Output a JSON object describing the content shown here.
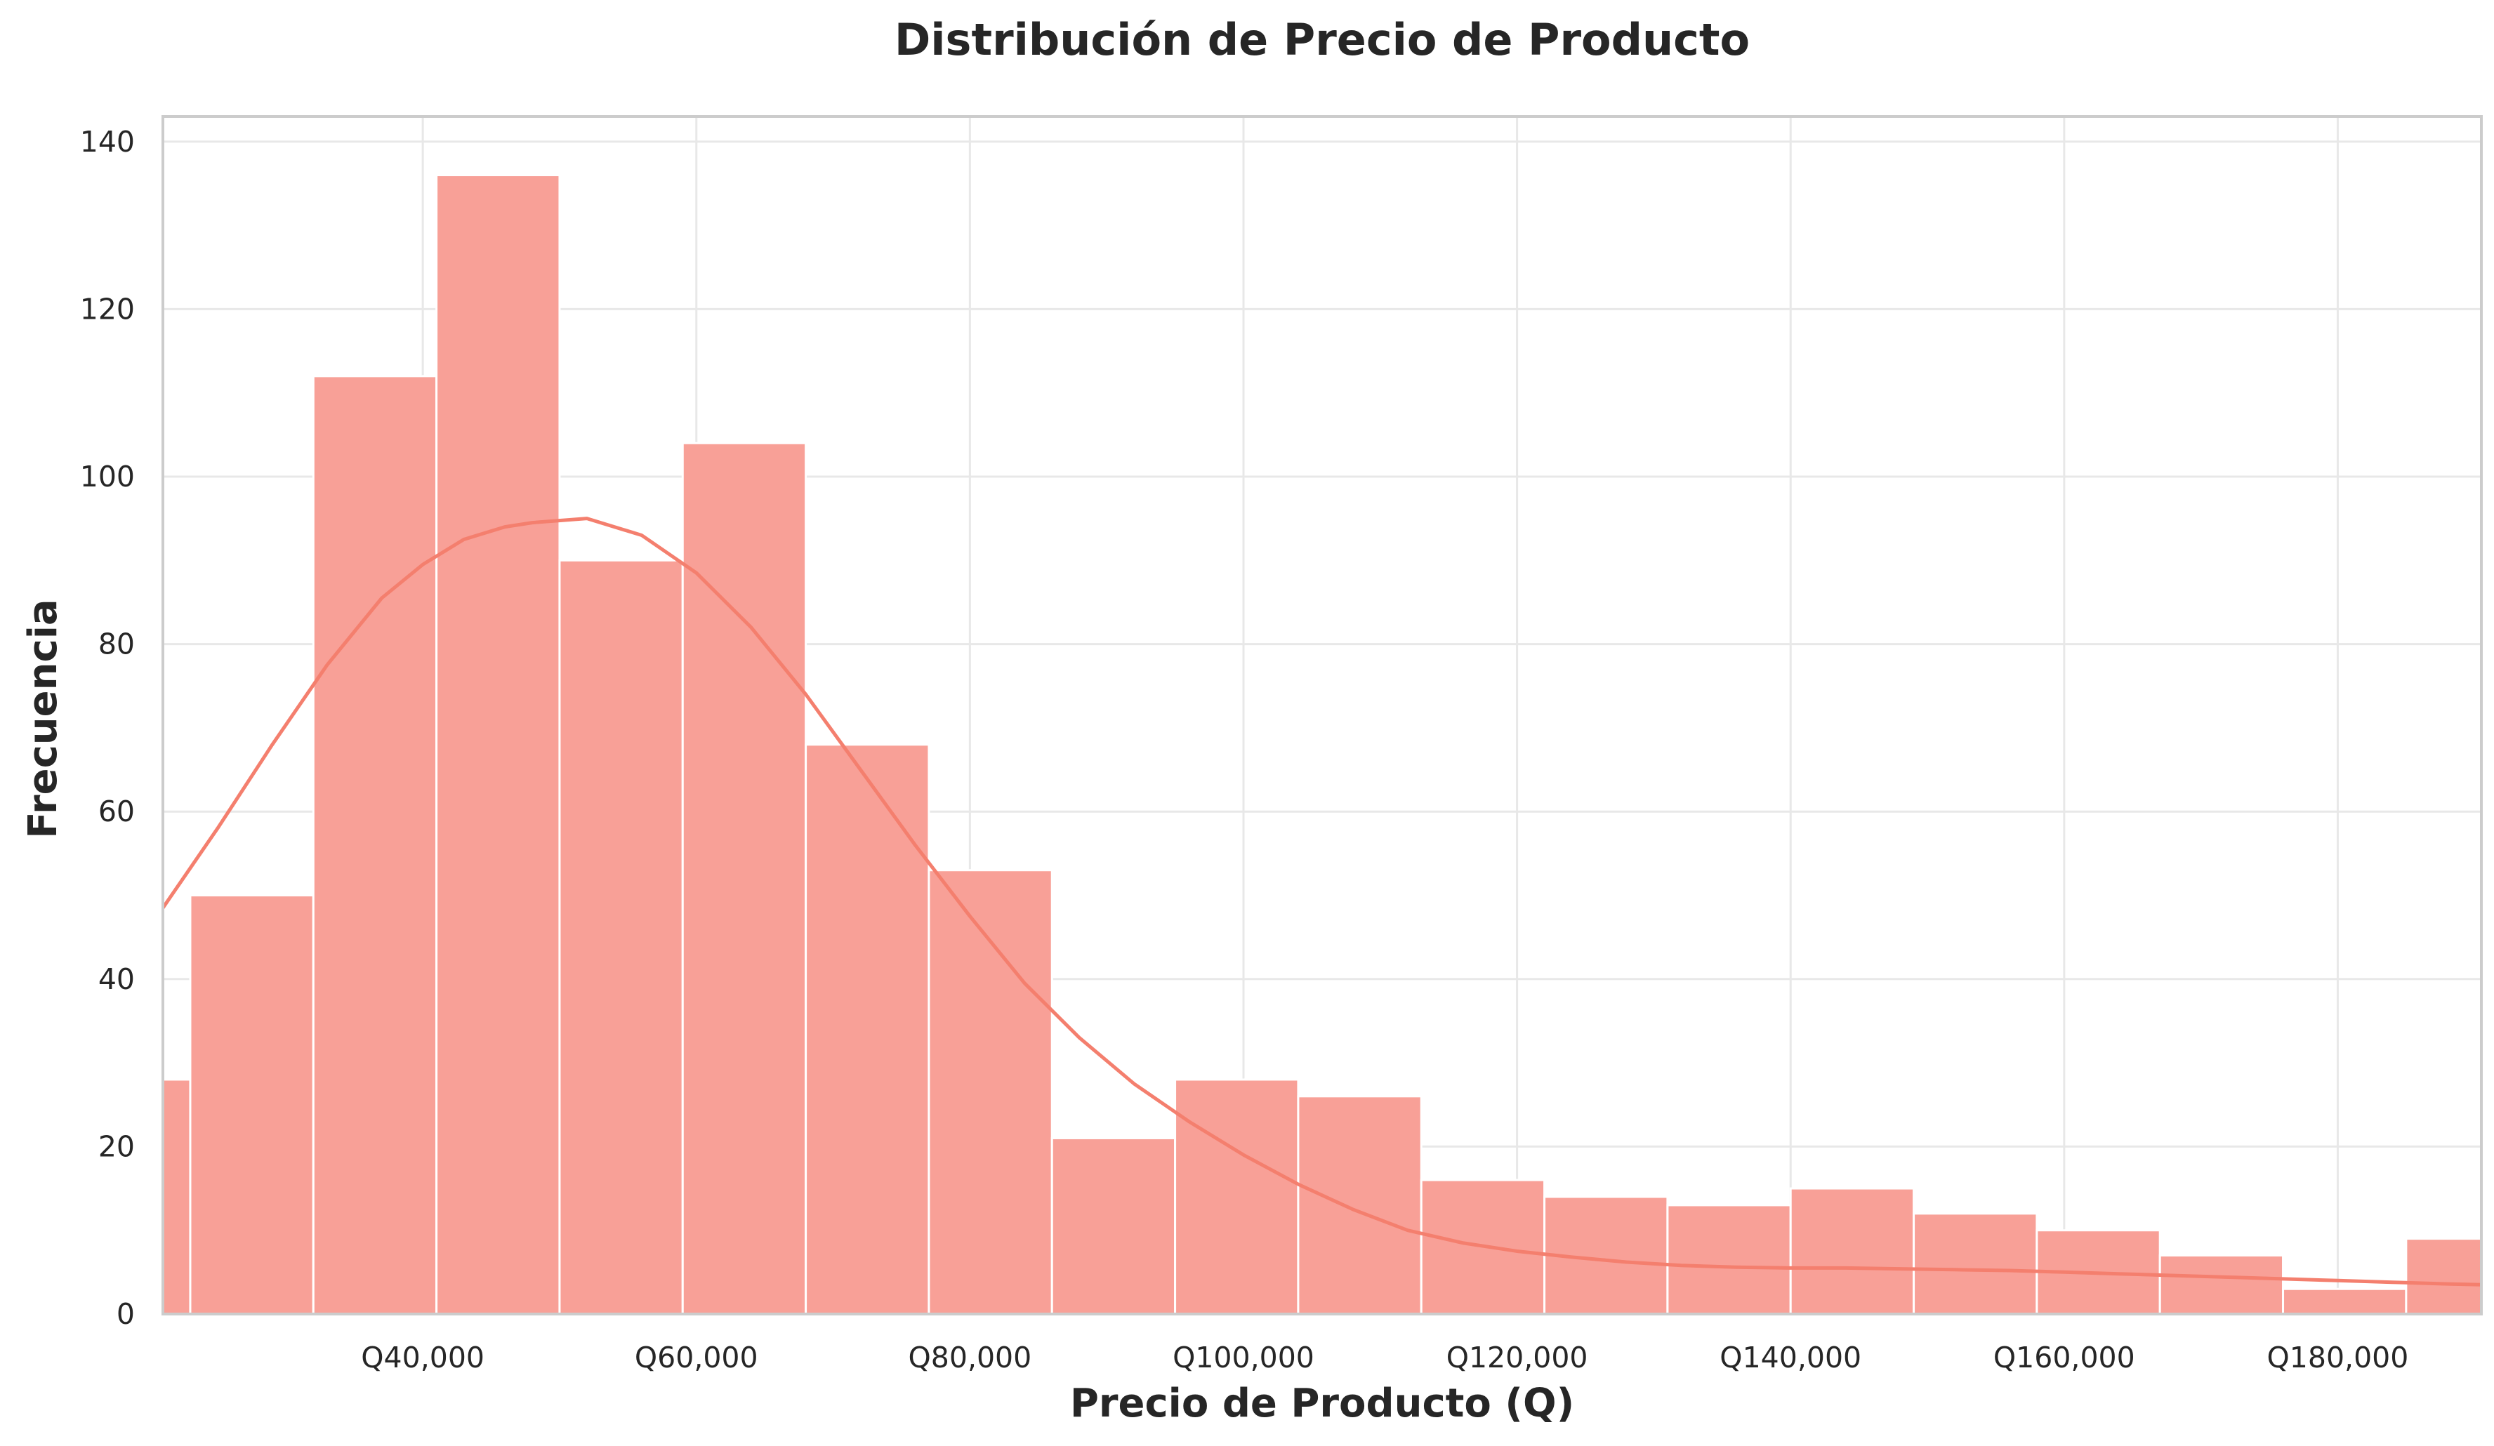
{
  "chart_data": {
    "type": "bar",
    "title": "Distribución de Precio de Producto",
    "xlabel": "Precio de Producto (Q)",
    "ylabel": "Frecuencia",
    "xlim": [
      21000,
      190500
    ],
    "ylim": [
      0,
      143
    ],
    "x_ticks": [
      40000,
      60000,
      80000,
      100000,
      120000,
      140000,
      160000,
      180000
    ],
    "x_tick_labels": [
      "Q40,000",
      "Q60,000",
      "Q80,000",
      "Q100,000",
      "Q120,000",
      "Q140,000",
      "Q160,000",
      "Q180,000"
    ],
    "y_ticks": [
      0,
      20,
      40,
      60,
      80,
      100,
      120,
      140
    ],
    "y_tick_labels": [
      "0",
      "20",
      "40",
      "60",
      "80",
      "100",
      "120",
      "140"
    ],
    "bins": [
      {
        "x0": 14000,
        "x1": 23000,
        "count": 28
      },
      {
        "x0": 23000,
        "x1": 32000,
        "count": 50
      },
      {
        "x0": 32000,
        "x1": 41000,
        "count": 112
      },
      {
        "x0": 41000,
        "x1": 50000,
        "count": 136
      },
      {
        "x0": 50000,
        "x1": 59000,
        "count": 90
      },
      {
        "x0": 59000,
        "x1": 68000,
        "count": 104
      },
      {
        "x0": 68000,
        "x1": 77000,
        "count": 68
      },
      {
        "x0": 77000,
        "x1": 86000,
        "count": 53
      },
      {
        "x0": 86000,
        "x1": 95000,
        "count": 21
      },
      {
        "x0": 95000,
        "x1": 104000,
        "count": 28
      },
      {
        "x0": 104000,
        "x1": 113000,
        "count": 26
      },
      {
        "x0": 113000,
        "x1": 122000,
        "count": 16
      },
      {
        "x0": 122000,
        "x1": 131000,
        "count": 14
      },
      {
        "x0": 131000,
        "x1": 140000,
        "count": 13
      },
      {
        "x0": 140000,
        "x1": 149000,
        "count": 15
      },
      {
        "x0": 149000,
        "x1": 158000,
        "count": 12
      },
      {
        "x0": 158000,
        "x1": 167000,
        "count": 10
      },
      {
        "x0": 167000,
        "x1": 176000,
        "count": 7
      },
      {
        "x0": 176000,
        "x1": 185000,
        "count": 3
      },
      {
        "x0": 185000,
        "x1": 194000,
        "count": 9
      }
    ],
    "kde_curve": {
      "x": [
        21000,
        25000,
        29000,
        33000,
        37000,
        40000,
        43000,
        46000,
        48000,
        52000,
        56000,
        60000,
        64000,
        68000,
        72000,
        76000,
        80000,
        84000,
        88000,
        92000,
        96000,
        100000,
        104000,
        108000,
        112000,
        116000,
        120000,
        124000,
        128000,
        132000,
        136000,
        140000,
        144000,
        148000,
        152000,
        156000,
        160000,
        164000,
        168000,
        172000,
        176000,
        180000,
        184000,
        188000,
        190500
      ],
      "y": [
        48.5,
        58,
        68,
        77.5,
        85.5,
        89.5,
        92.5,
        94,
        94.5,
        95,
        93,
        88.5,
        82,
        74,
        65,
        56,
        47.5,
        39.5,
        33,
        27.5,
        23,
        19,
        15.5,
        12.5,
        10,
        8.5,
        7.5,
        6.8,
        6.2,
        5.8,
        5.6,
        5.5,
        5.5,
        5.4,
        5.3,
        5.2,
        5.0,
        4.8,
        4.6,
        4.4,
        4.2,
        4.0,
        3.8,
        3.6,
        3.5
      ]
    },
    "grid": true,
    "colors": {
      "bar_fill": "#f8a097",
      "bar_edge": "#ffffff",
      "curve": "#f47f6e",
      "grid": "#e8e8e8",
      "spine": "#cccccc",
      "text": "#262626"
    }
  }
}
